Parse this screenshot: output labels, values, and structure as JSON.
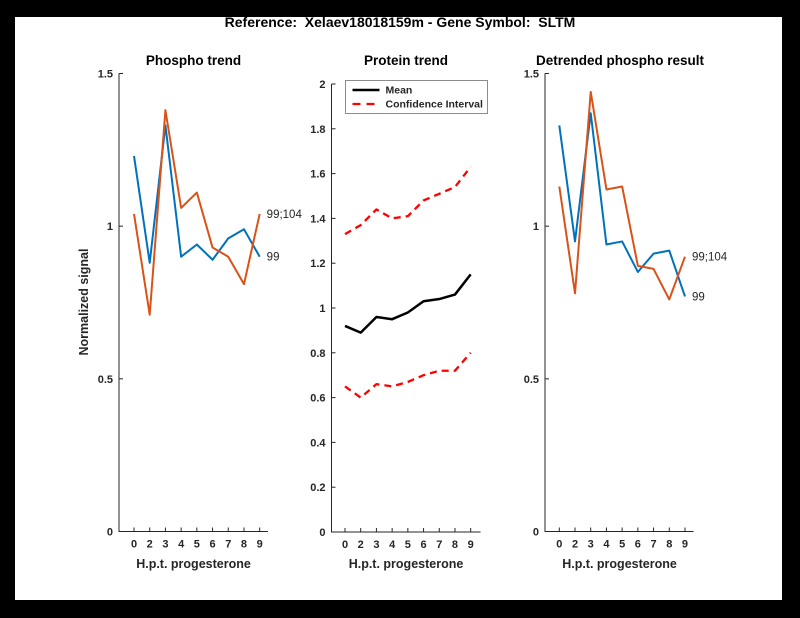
{
  "window": {
    "background": "#000000",
    "figure_background": "#ffffff"
  },
  "figure_title": "Reference:  Xelaev18018159m - Gene Symbol:  SLTM",
  "colors": {
    "blue": "#0072BD",
    "orange": "#D95319",
    "red": "#FF0000",
    "black": "#000000",
    "axis": "#262626"
  },
  "chart_data": [
    {
      "type": "line",
      "title": "Phospho trend",
      "xlabel": "H.p.t. progesterone",
      "ylabel": "Normalized signal",
      "categories": [
        "0",
        "2",
        "3",
        "4",
        "5",
        "6",
        "7",
        "8",
        "9"
      ],
      "ylim": [
        0,
        1.5
      ],
      "ytick_labels": [
        "0",
        "0.5",
        "1",
        "1.5"
      ],
      "yticks": [
        0,
        0.5,
        1,
        1.5
      ],
      "grid": false,
      "series": [
        {
          "name": "99",
          "color": "#0072BD",
          "style": "solid",
          "width": 2,
          "values": [
            1.23,
            0.88,
            1.33,
            0.9,
            0.94,
            0.89,
            0.96,
            0.99,
            0.9
          ],
          "end_label": "99"
        },
        {
          "name": "99;104",
          "color": "#D95319",
          "style": "solid",
          "width": 2,
          "values": [
            1.04,
            0.71,
            1.38,
            1.06,
            1.11,
            0.93,
            0.9,
            0.81,
            1.04
          ],
          "end_label": "99;104"
        }
      ]
    },
    {
      "type": "line",
      "title": "Protein trend",
      "xlabel": "H.p.t. progesterone",
      "ylabel": "",
      "categories": [
        "0",
        "2",
        "3",
        "4",
        "5",
        "6",
        "7",
        "8",
        "9"
      ],
      "ylim": [
        0,
        2
      ],
      "ytick_labels": [
        "0",
        "0.2",
        "0.4",
        "0.6",
        "0.8",
        "1",
        "1.2",
        "1.4",
        "1.6",
        "1.8",
        "2"
      ],
      "yticks": [
        0,
        0.2,
        0.4,
        0.6,
        0.8,
        1,
        1.2,
        1.4,
        1.6,
        1.8,
        2
      ],
      "grid": false,
      "legend": {
        "position": "northwest",
        "entries": [
          "Mean",
          "Confidence Interval"
        ]
      },
      "series": [
        {
          "name": "Mean",
          "color": "#000000",
          "style": "solid",
          "width": 2.5,
          "values": [
            0.92,
            0.89,
            0.96,
            0.95,
            0.98,
            1.03,
            1.04,
            1.06,
            1.15
          ]
        },
        {
          "name": "Confidence Interval (upper)",
          "color": "#FF0000",
          "style": "dashed",
          "width": 2.3,
          "values": [
            1.33,
            1.37,
            1.44,
            1.4,
            1.41,
            1.48,
            1.51,
            1.54,
            1.63
          ]
        },
        {
          "name": "Confidence Interval (lower)",
          "color": "#FF0000",
          "style": "dashed",
          "width": 2.3,
          "values": [
            0.65,
            0.6,
            0.66,
            0.65,
            0.67,
            0.7,
            0.72,
            0.72,
            0.8
          ]
        }
      ]
    },
    {
      "type": "line",
      "title": "Detrended phospho result",
      "xlabel": "H.p.t. progesterone",
      "ylabel": "",
      "categories": [
        "0",
        "2",
        "3",
        "4",
        "5",
        "6",
        "7",
        "8",
        "9"
      ],
      "ylim": [
        0,
        1.5
      ],
      "ytick_labels": [
        "0",
        "0.5",
        "1",
        "1.5"
      ],
      "yticks": [
        0,
        0.5,
        1,
        1.5
      ],
      "grid": false,
      "series": [
        {
          "name": "99",
          "color": "#0072BD",
          "style": "solid",
          "width": 2,
          "values": [
            1.33,
            0.95,
            1.37,
            0.94,
            0.95,
            0.85,
            0.91,
            0.92,
            0.77
          ],
          "end_label": "99"
        },
        {
          "name": "99;104",
          "color": "#D95319",
          "style": "solid",
          "width": 2,
          "values": [
            1.13,
            0.78,
            1.44,
            1.12,
            1.13,
            0.87,
            0.86,
            0.76,
            0.9
          ],
          "end_label": "99;104"
        }
      ]
    }
  ]
}
